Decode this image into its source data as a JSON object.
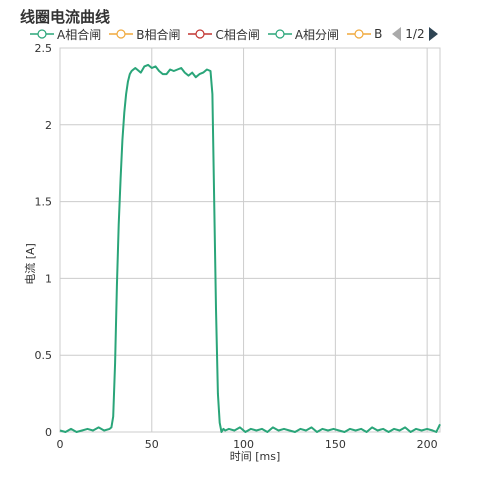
{
  "title": "线圈电流曲线",
  "legend": {
    "items": [
      {
        "label": "A相合闸",
        "color": "#2aa579"
      },
      {
        "label": "B相合闸",
        "color": "#f0a93c"
      },
      {
        "label": "C相合闸",
        "color": "#c23531"
      },
      {
        "label": "A相分闸",
        "color": "#2aa579"
      },
      {
        "label": "B",
        "color": "#f0a93c"
      }
    ],
    "page": "1/2"
  },
  "chart_data": {
    "type": "line",
    "xlabel": "时间 [ms]",
    "ylabel": "电流 [A]",
    "xlim": [
      0,
      207
    ],
    "ylim": [
      0,
      2.5
    ],
    "xticks": [
      0,
      50,
      100,
      150,
      200
    ],
    "yticks": [
      0,
      0.5,
      1,
      1.5,
      2,
      2.5
    ],
    "ytick_labels": [
      "0",
      "0.5",
      "1",
      "1.5",
      "2",
      "2.5"
    ],
    "grid": true,
    "series": [
      {
        "name": "A相分闸",
        "color": "#2aa579",
        "x": [
          0,
          3,
          6,
          9,
          12,
          15,
          18,
          21,
          24,
          27,
          28,
          29,
          30,
          31,
          32,
          33,
          34,
          35,
          36,
          37,
          38,
          39,
          40,
          41,
          42,
          44,
          46,
          48,
          50,
          52,
          54,
          56,
          58,
          60,
          62,
          64,
          66,
          68,
          70,
          72,
          74,
          76,
          78,
          80,
          82,
          83,
          84,
          85,
          86,
          87,
          88,
          89,
          90,
          92,
          95,
          98,
          101,
          104,
          107,
          110,
          113,
          116,
          119,
          122,
          125,
          128,
          131,
          134,
          137,
          140,
          143,
          146,
          149,
          152,
          155,
          158,
          161,
          164,
          167,
          170,
          173,
          176,
          179,
          182,
          185,
          188,
          191,
          194,
          197,
          200,
          203,
          205,
          207
        ],
        "y": [
          0.01,
          0.0,
          0.02,
          0.0,
          0.01,
          0.02,
          0.01,
          0.03,
          0.01,
          0.02,
          0.03,
          0.1,
          0.45,
          0.95,
          1.35,
          1.65,
          1.9,
          2.08,
          2.2,
          2.28,
          2.33,
          2.35,
          2.36,
          2.37,
          2.36,
          2.34,
          2.38,
          2.39,
          2.37,
          2.38,
          2.35,
          2.33,
          2.33,
          2.36,
          2.35,
          2.36,
          2.37,
          2.34,
          2.32,
          2.34,
          2.31,
          2.33,
          2.34,
          2.36,
          2.35,
          2.2,
          1.5,
          0.8,
          0.25,
          0.06,
          0.0,
          0.02,
          0.01,
          0.02,
          0.01,
          0.03,
          0.0,
          0.02,
          0.01,
          0.02,
          0.0,
          0.03,
          0.01,
          0.02,
          0.01,
          0.0,
          0.02,
          0.01,
          0.03,
          0.0,
          0.02,
          0.01,
          0.02,
          0.01,
          0.0,
          0.02,
          0.01,
          0.02,
          0.0,
          0.03,
          0.01,
          0.02,
          0.0,
          0.02,
          0.01,
          0.03,
          0.0,
          0.02,
          0.01,
          0.02,
          0.01,
          0.0,
          0.05
        ]
      }
    ]
  }
}
